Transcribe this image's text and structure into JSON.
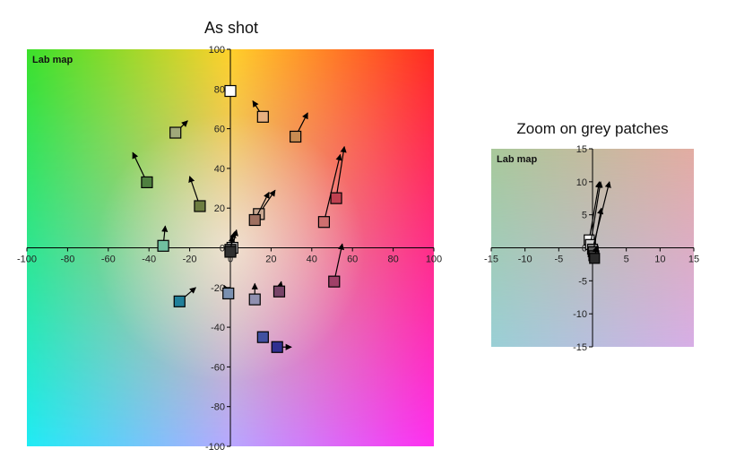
{
  "chart_data": [
    {
      "type": "scatter",
      "title": "As shot",
      "map_label": "Lab map",
      "xlim": [
        -100,
        100
      ],
      "ylim": [
        -100,
        100
      ],
      "xticks": [
        -100,
        -80,
        -60,
        -40,
        -20,
        0,
        20,
        40,
        60,
        80,
        100
      ],
      "yticks": [
        -100,
        -80,
        -60,
        -40,
        -20,
        0,
        20,
        40,
        60,
        80,
        100
      ],
      "grid": false,
      "patches": [
        {
          "a": 0,
          "b": 79,
          "ta": 0,
          "tb": 79,
          "color": "#ffffff"
        },
        {
          "a": 16,
          "b": 66,
          "ta": 11,
          "tb": 74,
          "color": "#e8b080"
        },
        {
          "a": 32,
          "b": 56,
          "ta": 38,
          "tb": 68,
          "color": "#c88c52"
        },
        {
          "a": -27,
          "b": 58,
          "ta": -21,
          "tb": 64,
          "color": "#a0a87a"
        },
        {
          "a": -41,
          "b": 33,
          "ta": -48,
          "tb": 48,
          "color": "#4f8040"
        },
        {
          "a": -15,
          "b": 21,
          "ta": -20,
          "tb": 36,
          "color": "#6d7d40"
        },
        {
          "a": 14,
          "b": 17,
          "ta": 22,
          "tb": 29,
          "color": "#c9a790"
        },
        {
          "a": 12,
          "b": 14,
          "ta": 19,
          "tb": 28,
          "color": "#9f7060"
        },
        {
          "a": 46,
          "b": 13,
          "ta": 54,
          "tb": 47,
          "color": "#cf6f6f"
        },
        {
          "a": 52,
          "b": 25,
          "ta": 56,
          "tb": 51,
          "color": "#c04050"
        },
        {
          "a": -33,
          "b": 1,
          "ta": -32,
          "tb": 11,
          "color": "#70c0a0"
        },
        {
          "a": 1,
          "b": 0,
          "ta": 3,
          "tb": 9,
          "color": "#c8c8c8"
        },
        {
          "a": 0,
          "b": -1,
          "ta": 2,
          "tb": 8,
          "color": "#707070"
        },
        {
          "a": 0,
          "b": -2,
          "ta": 1,
          "tb": 6,
          "color": "#303030"
        },
        {
          "a": 51,
          "b": -17,
          "ta": 55,
          "tb": 2,
          "color": "#a04068"
        },
        {
          "a": -25,
          "b": -27,
          "ta": -17,
          "tb": -20,
          "color": "#20809a"
        },
        {
          "a": -1,
          "b": -23,
          "ta": -3,
          "tb": -19,
          "color": "#7a90b0"
        },
        {
          "a": 12,
          "b": -26,
          "ta": 12,
          "tb": -18,
          "color": "#9090b0"
        },
        {
          "a": 24,
          "b": -22,
          "ta": 25,
          "tb": -17,
          "color": "#784468"
        },
        {
          "a": 16,
          "b": -45,
          "ta": 16,
          "tb": -45,
          "color": "#4050a0"
        },
        {
          "a": 23,
          "b": -50,
          "ta": 30,
          "tb": -50,
          "color": "#303090"
        }
      ]
    },
    {
      "type": "scatter",
      "title": "Zoom on grey patches",
      "map_label": "Lab map",
      "xlim": [
        -15,
        15
      ],
      "ylim": [
        -15,
        15
      ],
      "xticks": [
        -15,
        -10,
        -5,
        0,
        5,
        10,
        15
      ],
      "yticks": [
        -15,
        -10,
        -5,
        0,
        5,
        10,
        15
      ],
      "grid": false,
      "patches": [
        {
          "a": -0.5,
          "b": 1.2,
          "ta": 1.0,
          "tb": 10.0,
          "color": "#ffffff"
        },
        {
          "a": -0.3,
          "b": 0.5,
          "ta": 1.2,
          "tb": 10.0,
          "color": "#d0d0d0"
        },
        {
          "a": 0,
          "b": -0.2,
          "ta": 2.5,
          "tb": 10.0,
          "color": "#909090"
        },
        {
          "a": 0.1,
          "b": -0.6,
          "ta": 1.3,
          "tb": 6.0,
          "color": "#606060"
        },
        {
          "a": 0.2,
          "b": -1.2,
          "ta": 0.8,
          "tb": 0.3,
          "color": "#404040"
        },
        {
          "a": 0.3,
          "b": -1.6,
          "ta": 0.6,
          "tb": 0.2,
          "color": "#2a2a2a"
        }
      ]
    }
  ]
}
